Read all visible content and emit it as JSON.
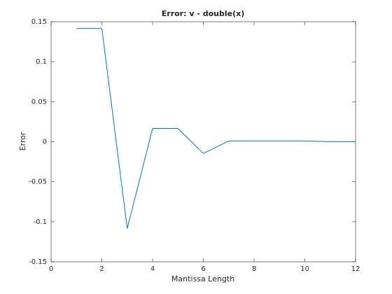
{
  "chart_data": {
    "type": "line",
    "title": "Error: v - double(x)",
    "x_label": "Mantissa Length",
    "y_label": "Error",
    "x": [
      1,
      2,
      3,
      4,
      5,
      6,
      7,
      8,
      9,
      10,
      11,
      12
    ],
    "series": [
      {
        "name": "Error",
        "color": "#0072bd",
        "values": [
          0.1416,
          0.1416,
          -0.1084,
          0.0166,
          0.0166,
          -0.0146,
          0.001,
          0.001,
          0.001,
          0.001,
          0.0001,
          0.0001
        ]
      }
    ],
    "xlim": [
      0,
      12
    ],
    "xticks": [
      0,
      2,
      4,
      6,
      8,
      10,
      12
    ],
    "ylim": [
      -0.15,
      0.15
    ],
    "yticks": [
      -0.15,
      -0.1,
      -0.05,
      0,
      0.05,
      0.1,
      0.15
    ]
  }
}
